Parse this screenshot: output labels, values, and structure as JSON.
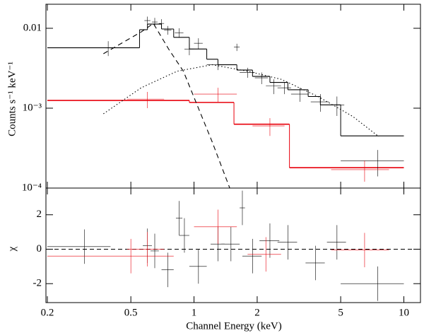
{
  "chart_data": [
    {
      "type": "line",
      "ylabel": "Counts s⁻¹ keV⁻¹",
      "xlog": true,
      "ylog": true,
      "xlim": [
        0.2,
        12
      ],
      "ylim": [
        0.0001,
        0.02
      ],
      "xticks": [
        0.2,
        0.5,
        1,
        2,
        5,
        10
      ],
      "yticks": [
        {
          "value": 0.0001,
          "label": "10⁻⁴"
        },
        {
          "value": 0.001,
          "label": "10⁻³"
        },
        0.01
      ],
      "series": [
        {
          "style": "step",
          "color": "#000000",
          "bins": [
            0.2,
            0.55,
            0.6,
            0.7,
            0.8,
            0.95,
            1.15,
            1.3,
            1.6,
            1.9,
            2.3,
            2.8,
            3.5,
            4,
            5,
            10
          ],
          "values": [
            0.0057,
            0.0096,
            0.0113,
            0.0098,
            0.0077,
            0.0055,
            0.0041,
            0.0035,
            0.003,
            0.0025,
            0.0021,
            0.0017,
            0.0014,
            0.0011,
            0.00045
          ]
        },
        {
          "style": "step",
          "color": "#e8000b",
          "bins": [
            0.2,
            0.95,
            1.55,
            2.85,
            10
          ],
          "values": [
            0.00125,
            0.00118,
            0.00063,
            0.00018
          ]
        },
        {
          "style": "dashed",
          "color": "#000000",
          "x": [
            0.37,
            0.56,
            0.64,
            0.76,
            0.89,
            1.04,
            1.22,
            1.48
          ],
          "values": [
            0.0048,
            0.009,
            0.0115,
            0.0054,
            0.0029,
            0.00106,
            0.00038,
            0.0001
          ]
        },
        {
          "style": "dotted",
          "color": "#000000",
          "x": [
            0.37,
            0.56,
            0.83,
            1.22,
            1.8,
            2.6,
            3.9,
            5.7,
            7.6
          ],
          "values": [
            0.00085,
            0.0018,
            0.0029,
            0.0035,
            0.0029,
            0.0023,
            0.0014,
            0.00079,
            0.00044
          ]
        },
        {
          "style": "errorbar",
          "color": "#000000",
          "x": [
            0.39,
            0.6,
            0.65,
            0.7,
            0.75,
            0.85,
            0.95,
            1.05,
            1.3,
            1.6,
            1.8,
            2.1,
            2.4,
            2.7,
            3.2,
            4.0,
            4.8,
            7.5
          ],
          "xerr": [
            0.06,
            0.02,
            0.02,
            0.02,
            0.03,
            0.04,
            0.05,
            0.05,
            0.15,
            0.05,
            0.15,
            0.15,
            0.2,
            0.2,
            0.3,
            0.4,
            0.4,
            2.5
          ],
          "values": [
            0.0057,
            0.0125,
            0.012,
            0.0115,
            0.0095,
            0.0088,
            0.0055,
            0.0065,
            0.0035,
            0.0058,
            0.0028,
            0.0024,
            0.0019,
            0.0018,
            0.0015,
            0.0012,
            0.0011,
            0.00022
          ],
          "yerr": [
            0.0012,
            0.0015,
            0.0015,
            0.0015,
            0.0012,
            0.0012,
            0.0009,
            0.001,
            0.0005,
            0.0006,
            0.0004,
            0.0004,
            0.0004,
            0.0003,
            0.0003,
            0.0003,
            0.0003,
            8e-05
          ]
        },
        {
          "style": "errorbar",
          "color": "#e8000b",
          "x": [
            0.6,
            1.3,
            2.3,
            6.5
          ],
          "xerr": [
            0.12,
            0.3,
            0.4,
            2
          ],
          "values": [
            0.0013,
            0.0015,
            0.0006,
            0.00017
          ],
          "yerr": [
            0.0003,
            0.0003,
            0.00015,
            5e-05
          ]
        }
      ]
    },
    {
      "type": "residual",
      "xlabel": "Channel Energy (keV)",
      "ylabel": "χ",
      "xlog": true,
      "xlim": [
        0.2,
        12
      ],
      "ylim": [
        -3.1,
        3.55
      ],
      "xticks": [
        0.2,
        0.5,
        1,
        2,
        5,
        10
      ],
      "yticks": [
        -2,
        0,
        2
      ],
      "series": [
        {
          "style": "errorbar",
          "color": "#000000",
          "x": [
            0.3,
            0.6,
            0.65,
            0.75,
            0.85,
            0.9,
            1.05,
            1.3,
            1.5,
            1.7,
            1.9,
            2.3,
            2.8,
            3.8,
            4.8,
            7.5
          ],
          "xerr": [
            0.1,
            0.03,
            0.03,
            0.05,
            0.03,
            0.05,
            0.1,
            0.1,
            0.15,
            0.05,
            0.2,
            0.25,
            0.3,
            0.4,
            0.5,
            2.5
          ],
          "values": [
            0.15,
            0.2,
            -0.1,
            -1.2,
            1.8,
            0.8,
            -1.0,
            0.3,
            0.3,
            2.4,
            -0.4,
            0.5,
            0.4,
            -0.8,
            0.4,
            -2.0
          ],
          "yerr": [
            1,
            1,
            1,
            1,
            1,
            1,
            1,
            1,
            1,
            1,
            1,
            1,
            1,
            1,
            1,
            1
          ]
        },
        {
          "style": "errorbar",
          "color": "#e8000b",
          "x": [
            0.5,
            0.6,
            1.3,
            2.2,
            6.5
          ],
          "xerr": [
            0.3,
            0.12,
            0.3,
            0.4,
            2
          ],
          "values": [
            -0.4,
            0.0,
            1.3,
            -0.3,
            -0.05
          ],
          "yerr": [
            1,
            1,
            1,
            1,
            1
          ]
        }
      ]
    }
  ]
}
